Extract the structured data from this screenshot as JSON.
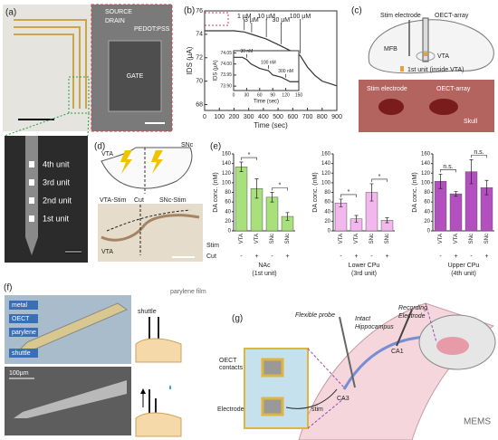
{
  "figure": {
    "panel_labels": [
      "(a)",
      "(b)",
      "(c)",
      "(d)",
      "(e)",
      "(f)",
      "(g)"
    ],
    "a": {
      "source": "SOURCE",
      "drain": "DRAIN",
      "pedot": "PEDOT:PSS",
      "gate": "GATE",
      "units": [
        "4th unit",
        "3rd unit",
        "2nd unit",
        "1st unit"
      ]
    },
    "c": {
      "stim_electrode": "Stim electrode",
      "oect_array": "OECT-array",
      "mfb": "MFB",
      "vta": "VTA",
      "legend": "1st unit (inside VTA)",
      "photo_stim": "Stim electrode",
      "photo_oect": "OECT-array",
      "skull": "Skull"
    },
    "d": {
      "vta": "VTA",
      "snc": "SNc",
      "vta_stim": "VTA-Stim",
      "cut": "Cut",
      "snc_stim": "SNc-Stim",
      "photo_vta": "VTA"
    },
    "e": {
      "stim": "Stim",
      "cut": "Cut"
    },
    "f": {
      "labels": [
        "metal",
        "OECT",
        "parylene",
        "shuttle"
      ],
      "scale": "100µm",
      "shuttle": "shuttle",
      "parylene_film": "parylene film"
    },
    "g": {
      "flexible_probe": "Flexible probe",
      "intact": "Intact",
      "hippocampus": "Hippocampus",
      "recording": "Recording",
      "electrode": "Electrode",
      "oect": "OECT",
      "contacts": "contacts",
      "electrode2": "Electrode",
      "ca1": "CA1",
      "ca3": "CA3",
      "stim": "stim"
    },
    "watermark": "MEMS"
  },
  "chart_data": [
    {
      "type": "line",
      "y_label": "IDS (µA)",
      "x_label": "Time (sec)",
      "x": [
        0,
        100,
        200,
        270,
        320,
        420,
        520,
        600,
        650,
        700,
        750,
        800,
        850,
        900
      ],
      "series": [
        {
          "color": "#333333",
          "values": [
            74.3,
            74.3,
            74.3,
            74.2,
            74.0,
            73.6,
            73.0,
            72.5,
            72.2,
            71.2,
            70.5,
            70.0,
            69.8,
            69.6
          ]
        }
      ],
      "xlim": [
        0,
        900
      ],
      "ylim": [
        67.5,
        76
      ],
      "xticks": [
        0,
        100,
        200,
        300,
        400,
        500,
        600,
        700,
        800,
        900
      ],
      "yticks": [
        68,
        70,
        72,
        74,
        76
      ],
      "annotations": [
        {
          "text": "1 µM",
          "x": 270
        },
        {
          "text": "3 µM",
          "x": 320
        },
        {
          "text": "10 µM",
          "x": 420
        },
        {
          "text": "30 µM",
          "x": 520
        },
        {
          "text": "100 µM",
          "x": 650
        }
      ]
    },
    {
      "type": "line",
      "y_label": "IDS (µA)",
      "x_label": "Time (sec)",
      "x": [
        0,
        20,
        30,
        40,
        60,
        80,
        90,
        110,
        120,
        130,
        150
      ],
      "series": [
        {
          "color": "#333333",
          "values": [
            74.03,
            74.03,
            74.02,
            74.0,
            73.98,
            73.97,
            73.95,
            73.94,
            73.93,
            73.92,
            73.92
          ]
        }
      ],
      "xlim": [
        0,
        150
      ],
      "ylim": [
        73.88,
        74.06
      ],
      "xticks": [
        0,
        30,
        60,
        90,
        120,
        150
      ],
      "yticks": [
        {
          "value": 73.9,
          "label": "73.90"
        },
        {
          "value": 73.95,
          "label": "73.95"
        },
        {
          "value": 74,
          "label": "74.00"
        },
        {
          "value": 74.05,
          "label": "74.05"
        }
      ],
      "annotations": [
        {
          "text": "30 nM",
          "x": 30
        },
        {
          "text": "100 nM",
          "x": 80
        },
        {
          "text": "300 nM",
          "x": 120
        }
      ]
    },
    {
      "type": "bar",
      "y_label": "DA conc. (nM)",
      "x_label": "NAc",
      "x_sublabel": "(1st unit)",
      "categories": [
        "VTA",
        "VTA",
        "SNc",
        "SNc"
      ],
      "cut": [
        "-",
        "+",
        "-",
        "+"
      ],
      "color": "#a8e07c",
      "values": [
        133,
        88,
        70,
        30
      ],
      "errors": [
        10,
        20,
        10,
        8
      ],
      "significance": [
        "*",
        "*"
      ],
      "ylim": [
        0,
        160
      ],
      "yticks": [
        0,
        20,
        40,
        60,
        80,
        100,
        120,
        140,
        160
      ]
    },
    {
      "type": "bar",
      "y_label": "DA conc. (nM)",
      "x_label": "Lower CPu",
      "x_sublabel": "(3rd unit)",
      "categories": [
        "VTA",
        "VTA",
        "SNc",
        "SNc"
      ],
      "cut": [
        "-",
        "+",
        "-",
        "+"
      ],
      "color": "#f2b8ee",
      "values": [
        58,
        25,
        80,
        22
      ],
      "errors": [
        8,
        7,
        18,
        5
      ],
      "significance": [
        "*",
        "*"
      ],
      "ylim": [
        0,
        160
      ],
      "yticks": [
        0,
        20,
        40,
        60,
        80,
        100,
        120,
        140,
        160
      ]
    },
    {
      "type": "bar",
      "y_label": "DA conc. (nM)",
      "x_label": "Upper CPu",
      "x_sublabel": "(4th unit)",
      "categories": [
        "VTA",
        "VTA",
        "SNc",
        "SNc"
      ],
      "cut": [
        "-",
        "+",
        "-",
        "+"
      ],
      "color": "#b44fc0",
      "values": [
        103,
        77,
        123,
        90
      ],
      "errors": [
        15,
        5,
        25,
        15
      ],
      "significance": [
        "n.s.",
        "n.s."
      ],
      "ylim": [
        0,
        160
      ],
      "yticks": [
        0,
        20,
        40,
        60,
        80,
        100,
        120,
        140,
        160
      ]
    }
  ]
}
